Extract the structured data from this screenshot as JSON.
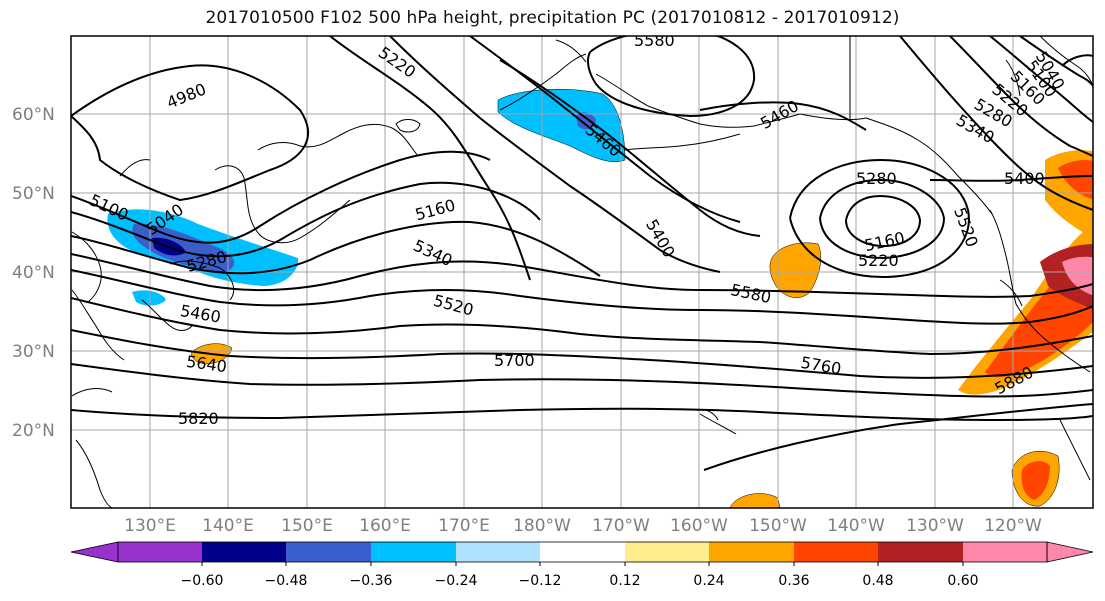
{
  "title": "2017010500 F102 500 hPa height, precipitation PC (2017010812 - 2017010912)",
  "map": {
    "lat_labels": [
      "60°N",
      "50°N",
      "40°N",
      "30°N",
      "20°N"
    ],
    "lon_labels": [
      "130°E",
      "140°E",
      "150°E",
      "160°E",
      "170°E",
      "180°W",
      "170°W",
      "160°W",
      "150°W",
      "140°W",
      "130°W",
      "120°W"
    ],
    "contour_labels": [
      "4980",
      "5220",
      "5580",
      "5040",
      "5100",
      "5160",
      "5280",
      "5340",
      "5400",
      "5460",
      "5520",
      "5580",
      "5640",
      "5700",
      "5760",
      "5820",
      "5880",
      "5460",
      "5160",
      "5220",
      "5280",
      "5040",
      "5100",
      "5160",
      "5220",
      "5280",
      "5340",
      "5400",
      "5460",
      "5520"
    ],
    "colors": {
      "ocean": "#ffffff",
      "contour": "#000000",
      "grid": "#a6a6a6"
    }
  },
  "colorbar": {
    "tick_labels": [
      "−0.60",
      "−0.48",
      "−0.36",
      "−0.24",
      "−0.12",
      "0.12",
      "0.24",
      "0.36",
      "0.48",
      "0.60"
    ],
    "colors": [
      "#9932cc",
      "#00008b",
      "#3a5fcd",
      "#00bfff",
      "#b0e2ff",
      "#ffffff",
      "#ffec8b",
      "#ffa500",
      "#ff4500",
      "#b22222",
      "#ff88aa"
    ]
  }
}
